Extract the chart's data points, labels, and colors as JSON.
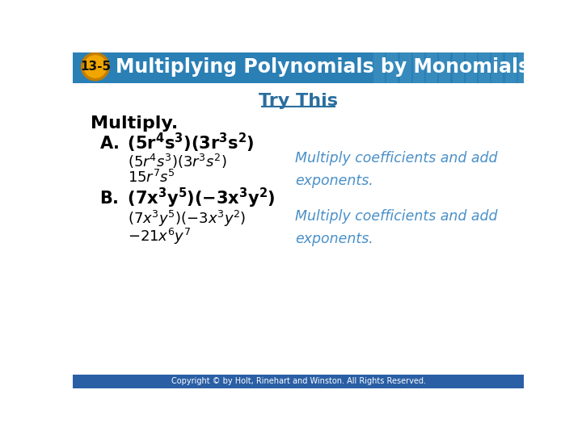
{
  "header_bg_color": "#2a7fb5",
  "header_text": "Multiplying Polynomials by Monomials",
  "header_badge_text": "13-5",
  "header_badge_bg": "#f0a500",
  "header_badge_outline": "#c47d00",
  "body_bg_color": "#ffffff",
  "title_text": "Try This",
  "title_color": "#2a6e9e",
  "multiply_label": "Multiply.",
  "label_color": "#000000",
  "footer_bg_color": "#2a5fa5",
  "footer_text": "Copyright © by Holt, Rinehart and Winston. All Rights Reserved.",
  "footer_color": "#ffffff",
  "blue_italic_color": "#4a90c8"
}
